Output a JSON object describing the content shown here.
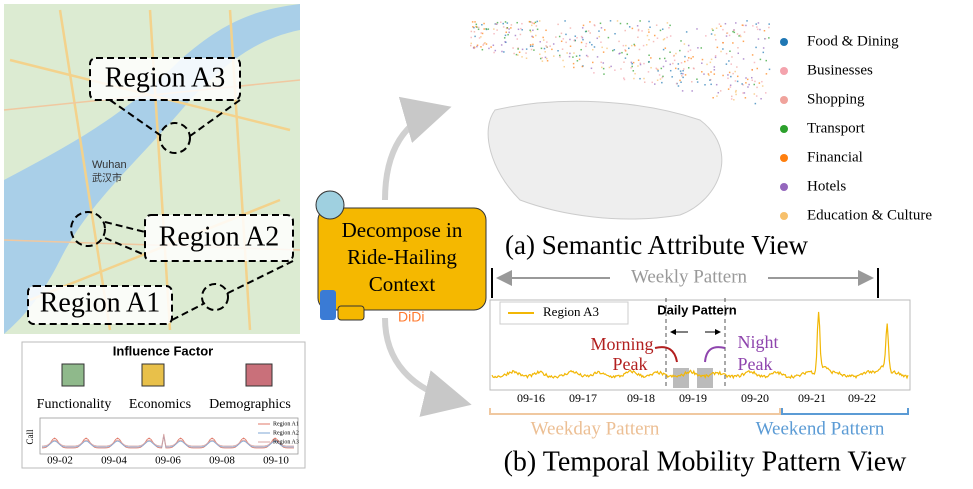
{
  "map": {
    "city": "Wuhan",
    "city_local": "武汉市",
    "regions": [
      "Region A3",
      "Region A2",
      "Region A1"
    ]
  },
  "factors": {
    "title": "Influence Factor",
    "items": [
      "Functionality",
      "Economics",
      "Demographics"
    ],
    "mini_chart": {
      "y_label": "Call",
      "x_ticks": [
        "09-02",
        "09-04",
        "09-06",
        "09-08",
        "09-10"
      ],
      "legend": [
        {
          "name": "Region A1",
          "color": "#e07a6a"
        },
        {
          "name": "Region A2",
          "color": "#7fa7d6"
        },
        {
          "name": "Region A3",
          "color": "#d9a3a0"
        }
      ]
    }
  },
  "center": {
    "lines": [
      "Decompose in",
      "Ride-Hailing",
      "Context"
    ],
    "brand": "DiDi"
  },
  "semantic": {
    "caption": "(a) Semantic Attribute View",
    "legend": [
      {
        "name": "Food & Dining",
        "color": "#1f77b4"
      },
      {
        "name": "Businesses",
        "color": "#f4a3ad"
      },
      {
        "name": "Shopping",
        "color": "#f0a39c"
      },
      {
        "name": "Transport",
        "color": "#2ca02c"
      },
      {
        "name": "Financial",
        "color": "#ff7f0e"
      },
      {
        "name": "Hotels",
        "color": "#9467bd"
      },
      {
        "name": "Education & Culture",
        "color": "#f7c06b"
      }
    ]
  },
  "temporal": {
    "caption": "(b) Temporal Mobility Pattern View",
    "weekly": "Weekly Pattern",
    "series": {
      "name": "Region A3",
      "color": "#f2b705"
    },
    "daily": "Daily Pattern",
    "morning": [
      "Morning",
      "Peak"
    ],
    "night": [
      "Night",
      "Peak"
    ],
    "x_ticks": [
      "09-16",
      "09-17",
      "09-18",
      "09-19",
      "09-20",
      "09-21",
      "09-22"
    ],
    "weekday": "Weekday Pattern",
    "weekend": "Weekend Pattern"
  }
}
